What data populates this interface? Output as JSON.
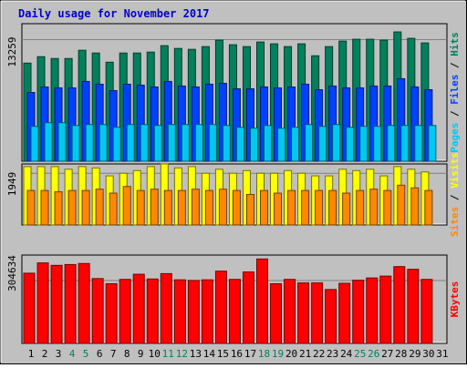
{
  "colors": {
    "background": "#c0c0c0",
    "panel": "#ffffff",
    "title": "#0000cc",
    "hits": "#00805c",
    "files": "#0040ff",
    "pages": "#00c8f0",
    "visits": "#ffff00",
    "sites": "#ff8800",
    "kbytes": "#ff0000",
    "weekend_label": "#00805c",
    "axis_label": "#000000"
  },
  "chart_data": [
    {
      "type": "bar",
      "title": "Daily usage for November 2017",
      "ylabel": "13259",
      "legend": [
        "Pages",
        "Files",
        "Hits"
      ],
      "legend_placement": "right",
      "grid": true,
      "ylim": [
        0,
        15000
      ],
      "categories": [
        "1",
        "2",
        "3",
        "4",
        "5",
        "6",
        "7",
        "8",
        "9",
        "10",
        "11",
        "12",
        "13",
        "14",
        "15",
        "16",
        "17",
        "18",
        "19",
        "20",
        "21",
        "22",
        "23",
        "24",
        "25",
        "26",
        "27",
        "28",
        "29",
        "30",
        "31"
      ],
      "weekend_categories": [
        "4",
        "5",
        "11",
        "12",
        "18",
        "19",
        "25",
        "26"
      ],
      "series": [
        {
          "name": "Hits",
          "values": [
            10700,
            11400,
            11200,
            11200,
            12100,
            11800,
            10800,
            11800,
            11800,
            11900,
            12600,
            12300,
            12200,
            12500,
            13200,
            12700,
            12500,
            13000,
            12800,
            12500,
            12800,
            11500,
            12500,
            13100,
            13300,
            13300,
            13200,
            14100,
            13400,
            12900,
            0
          ]
        },
        {
          "name": "Files",
          "values": [
            7500,
            8100,
            8000,
            8000,
            8700,
            8400,
            7700,
            8400,
            8300,
            8100,
            8700,
            8200,
            8100,
            8400,
            8500,
            7900,
            7900,
            8100,
            8000,
            8100,
            8400,
            7800,
            8200,
            8000,
            8000,
            8200,
            8200,
            9000,
            8100,
            7800,
            0
          ]
        },
        {
          "name": "Pages",
          "values": [
            3800,
            4200,
            4200,
            3900,
            4000,
            4000,
            3700,
            4000,
            4000,
            3900,
            4000,
            4000,
            4000,
            4000,
            3900,
            3700,
            3600,
            3900,
            3600,
            3700,
            4000,
            3800,
            4000,
            3700,
            3800,
            3800,
            3900,
            3900,
            3900,
            3900,
            0
          ]
        }
      ]
    },
    {
      "type": "bar",
      "ylabel": "1949",
      "legend": [
        "Sites",
        "Visits"
      ],
      "legend_placement": "right",
      "grid": true,
      "ylim": [
        0,
        2300
      ],
      "categories": [
        "1",
        "2",
        "3",
        "4",
        "5",
        "6",
        "7",
        "8",
        "9",
        "10",
        "11",
        "12",
        "13",
        "14",
        "15",
        "16",
        "17",
        "18",
        "19",
        "20",
        "21",
        "22",
        "23",
        "24",
        "25",
        "26",
        "27",
        "28",
        "29",
        "30",
        "31"
      ],
      "series": [
        {
          "name": "Visits",
          "values": [
            2200,
            2200,
            2200,
            2100,
            2200,
            2150,
            1850,
            1950,
            2050,
            2200,
            2300,
            2150,
            2200,
            1950,
            2100,
            1950,
            2050,
            1950,
            1950,
            2050,
            1950,
            1850,
            1850,
            2100,
            2050,
            2100,
            1850,
            2200,
            2100,
            2000,
            0
          ]
        },
        {
          "name": "Sites",
          "values": [
            1300,
            1300,
            1250,
            1300,
            1300,
            1350,
            1200,
            1450,
            1300,
            1350,
            1300,
            1300,
            1350,
            1300,
            1350,
            1300,
            1150,
            1300,
            1200,
            1300,
            1300,
            1300,
            1300,
            1200,
            1300,
            1350,
            1300,
            1500,
            1400,
            1300,
            0
          ]
        }
      ]
    },
    {
      "type": "bar",
      "ylabel": "304634",
      "legend": [
        "KBytes"
      ],
      "legend_placement": "right",
      "grid": true,
      "ylim": [
        0,
        428000
      ],
      "categories": [
        "1",
        "2",
        "3",
        "4",
        "5",
        "6",
        "7",
        "8",
        "9",
        "10",
        "11",
        "12",
        "13",
        "14",
        "15",
        "16",
        "17",
        "18",
        "19",
        "20",
        "21",
        "22",
        "23",
        "24",
        "25",
        "26",
        "27",
        "28",
        "29",
        "30",
        "31"
      ],
      "series": [
        {
          "name": "KBytes",
          "values": [
            340000,
            390000,
            378000,
            382000,
            387000,
            314000,
            289000,
            310000,
            335000,
            312000,
            338000,
            308000,
            305000,
            308000,
            350000,
            310000,
            346000,
            409000,
            289000,
            310000,
            293000,
            293000,
            261000,
            291000,
            306000,
            317000,
            326000,
            372000,
            359000,
            310000,
            0
          ]
        }
      ]
    }
  ]
}
